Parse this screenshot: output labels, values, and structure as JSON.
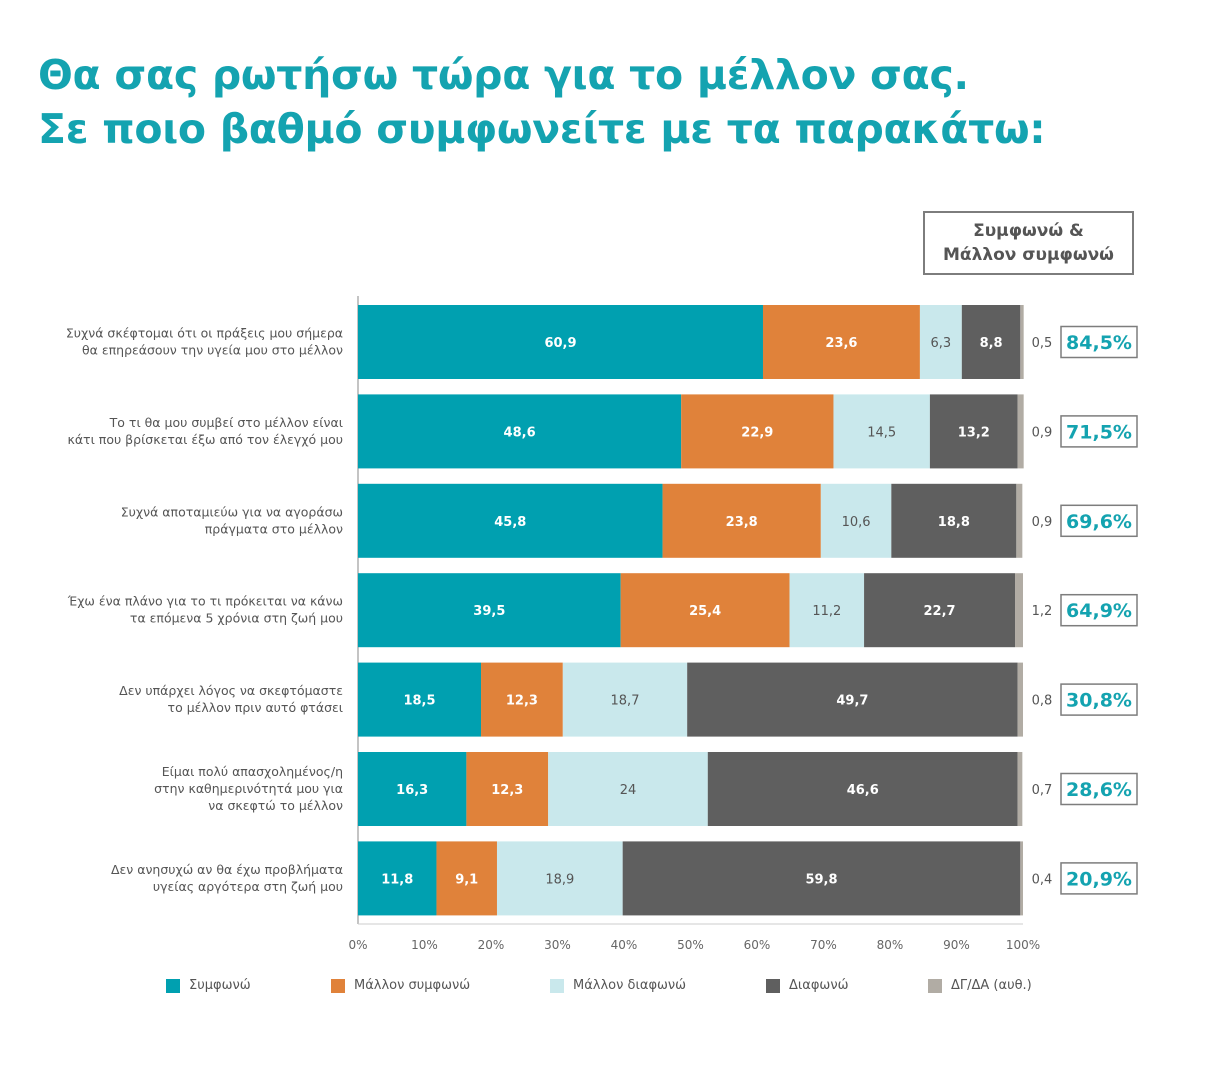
{
  "title": {
    "line1": "Θα σας ρωτήσω τώρα για το μέλλον σας.",
    "line2": "Σε ποιο βαθμό συμφωνείτε με τα παρακάτω:"
  },
  "summary_header": "Συμφωνώ &\nΜάλλον συμφωνώ",
  "colors": {
    "agree": "#00a0b0",
    "rather_agree": "#e0823a",
    "rather_disagree": "#c9e8ec",
    "disagree": "#5f5f5f",
    "dk_na": "#b1aca4",
    "summary_text": "#14a3b0"
  },
  "chart_data": {
    "type": "bar",
    "orientation": "horizontal",
    "stacked": true,
    "xlim": [
      0,
      100
    ],
    "x_ticks": [
      "0%",
      "10%",
      "20%",
      "30%",
      "40%",
      "50%",
      "60%",
      "70%",
      "80%",
      "90%",
      "100%"
    ],
    "categories": [
      [
        "Συχνά σκέφτομαι ότι οι πράξεις μου σήμερα",
        "θα επηρεάσουν την υγεία μου στο μέλλον"
      ],
      [
        "Το τι θα μου συμβεί στο μέλλον είναι",
        "κάτι που βρίσκεται έξω από τον έλεγχό μου"
      ],
      [
        "Συχνά αποταμιεύω για να αγοράσω",
        "πράγματα στο μέλλον"
      ],
      [
        "Έχω ένα πλάνο για το τι πρόκειται να κάνω",
        "τα επόμενα 5 χρόνια στη ζωή μου"
      ],
      [
        "Δεν υπάρχει λόγος να σκεφτόμαστε",
        "το μέλλον πριν αυτό φτάσει"
      ],
      [
        "Είμαι πολύ απασχολημένος/η",
        "στην καθημερινότητά μου για",
        "να σκεφτώ το μέλλον"
      ],
      [
        "Δεν ανησυχώ αν θα έχω προβλήματα",
        "υγείας αργότερα στη ζωή μου"
      ]
    ],
    "series": [
      {
        "name": "Συμφωνώ",
        "color_key": "agree",
        "values": [
          60.9,
          48.6,
          45.8,
          39.5,
          18.5,
          16.3,
          11.8
        ],
        "labels": [
          "60,9",
          "48,6",
          "45,8",
          "39,5",
          "18,5",
          "16,3",
          "11,8"
        ]
      },
      {
        "name": "Μάλλον συμφωνώ",
        "color_key": "rather_agree",
        "values": [
          23.6,
          22.9,
          23.8,
          25.4,
          12.3,
          12.3,
          9.1
        ],
        "labels": [
          "23,6",
          "22,9",
          "23,8",
          "25,4",
          "12,3",
          "12,3",
          "9,1"
        ]
      },
      {
        "name": "Μάλλον διαφωνώ",
        "color_key": "rather_disagree",
        "values": [
          6.3,
          14.5,
          10.6,
          11.2,
          18.7,
          24,
          18.9
        ],
        "labels": [
          "6,3",
          "14,5",
          "10,6",
          "11,2",
          "18,7",
          "24",
          "18,9"
        ]
      },
      {
        "name": "Διαφωνώ",
        "color_key": "disagree",
        "values": [
          8.8,
          13.2,
          18.8,
          22.7,
          49.7,
          46.6,
          59.8
        ],
        "labels": [
          "8,8",
          "13,2",
          "18,8",
          "22,7",
          "49,7",
          "46,6",
          "59,8"
        ]
      },
      {
        "name": "ΔΓ/ΔΑ (αυθ.)",
        "color_key": "dk_na",
        "values": [
          0.5,
          0.9,
          0.9,
          1.2,
          0.8,
          0.7,
          0.4
        ],
        "labels": [
          "0,5",
          "0,9",
          "0,9",
          "1,2",
          "0,8",
          "0,7",
          "0,4"
        ]
      }
    ],
    "summary_values": [
      "84,5%",
      "71,5%",
      "69,6%",
      "64,9%",
      "30,8%",
      "28,6%",
      "20,9%"
    ],
    "legend_placement": "bottom",
    "grid": false
  }
}
